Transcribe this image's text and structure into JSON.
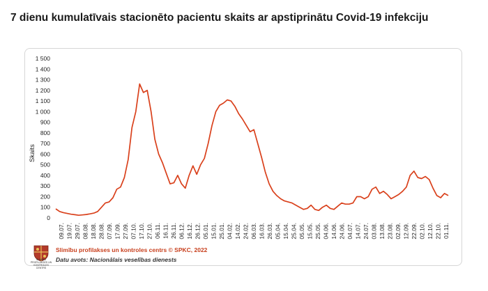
{
  "title": "7 dienu kumulatīvais stacionēto pacientu skaits ar apstiprinātu Covid-19 infekciju",
  "footer": {
    "source_line": "Slimību profilakses un kontroles centrs © SPKC, 2022",
    "data_source": "Datu avots: Nacionālais veselības dienests",
    "logo_text": "SLIMĪBU PROFILAKSES UN KONTROLES CENTRS"
  },
  "chart_data": {
    "type": "line",
    "title": "7 dienu kumulatīvais stacionēto pacientu skaits ar apstiprinātu Covid-19 infekciju",
    "ylabel": "Skaits",
    "xlabel": "",
    "ylim": [
      0,
      1500
    ],
    "yticks": [
      0,
      100,
      200,
      300,
      400,
      500,
      600,
      700,
      800,
      900,
      1000,
      1100,
      1200,
      1300,
      1400,
      1500
    ],
    "ytick_labels": [
      "0",
      "100",
      "200",
      "300",
      "400",
      "500",
      "600",
      "700",
      "800",
      "900",
      "1 000",
      "1 100",
      "1 200",
      "1 300",
      "1 400",
      "1 500"
    ],
    "x_tick_labels": [
      "09.07.",
      "19.07.",
      "29.07.",
      "08.08.",
      "18.08.",
      "28.08.",
      "07.09.",
      "17.09.",
      "27.09.",
      "07.10.",
      "17.10.",
      "27.10.",
      "06.11.",
      "16.11.",
      "26.11.",
      "06.12.",
      "16.12.",
      "26.12.",
      "05.01.",
      "15.01.",
      "25.01.",
      "04.02.",
      "14.02.",
      "24.02.",
      "06.03.",
      "16.03.",
      "26.03.",
      "05.04.",
      "15.04.",
      "25.04.",
      "05.05.",
      "15.05.",
      "25.05.",
      "04.06.",
      "14.06.",
      "24.06.",
      "04.07.",
      "14.07.",
      "24.07.",
      "03.08.",
      "13.08.",
      "23.08.",
      "02.09.",
      "12.09.",
      "22.09.",
      "02.10.",
      "12.10.",
      "22.10.",
      "01.11."
    ],
    "grid": false,
    "legend": "none",
    "line_color": "#d9401b",
    "series": [
      {
        "values": [
          85,
          60,
          50,
          42,
          35,
          30,
          25,
          28,
          32,
          38,
          45,
          60,
          100,
          140,
          150,
          190,
          270,
          290,
          380,
          550,
          850,
          1000,
          1260,
          1180,
          1200,
          1000,
          740,
          600,
          520,
          420,
          320,
          330,
          400,
          320,
          280,
          400,
          490,
          410,
          500,
          560,
          700,
          870,
          1000,
          1060,
          1080,
          1110,
          1100,
          1050,
          980,
          930,
          870,
          810,
          830,
          700,
          570,
          430,
          320,
          250,
          210,
          180,
          160,
          150,
          140,
          120,
          100,
          80,
          90,
          120,
          80,
          70,
          100,
          120,
          90,
          80,
          110,
          140,
          130,
          130,
          140,
          200,
          200,
          180,
          200,
          270,
          290,
          230,
          250,
          220,
          180,
          200,
          220,
          250,
          290,
          400,
          440,
          380,
          370,
          390,
          360,
          280,
          210,
          190,
          230,
          210
        ]
      }
    ]
  }
}
